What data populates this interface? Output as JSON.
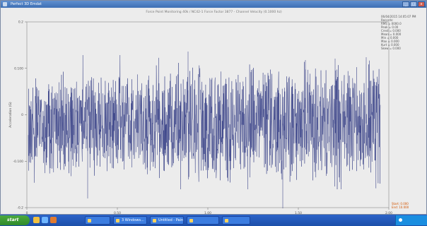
{
  "window": {
    "title": "Perfect 3D Emdat",
    "icon": "app-icon"
  },
  "plot": {
    "header": "Force Point Monitoring 40k / NC42-1 Force Factor 3877 - Channel Velocity (0.1000 hz)",
    "info_top": "06/04/2015  14:05:07 PM",
    "info_lines": [
      "Records:",
      "RMS = 0000.0",
      "Peak = 0.00",
      "Crest = 0.000",
      "Mean = 0.000",
      "Min = 0.000",
      "Max = 0.000",
      "Kurt = 0.000",
      "Skew = 0.000"
    ],
    "info_red": [
      "Start: 0.000",
      "End: 10.000"
    ]
  },
  "chart_data": {
    "type": "line",
    "title": "",
    "xlabel": "Time (sec)",
    "ylabel": "Acceleration (G)",
    "xlim": [
      0,
      2.0
    ],
    "ylim": [
      -0.2,
      0.2
    ],
    "yticks": [
      "0.2",
      "0.100",
      "0",
      "-0.100",
      "-0.2"
    ],
    "xticks": [
      "0",
      "0.50",
      "1.00",
      "1.50",
      "2.00"
    ],
    "series": [
      {
        "color": "#28317e"
      }
    ],
    "grid": false
  },
  "taskbar": {
    "start_label": "start",
    "buttons": [
      "",
      "3 Windows...",
      "Untitled - Paint",
      "",
      ""
    ],
    "tray_icon": "speaker-icon"
  }
}
